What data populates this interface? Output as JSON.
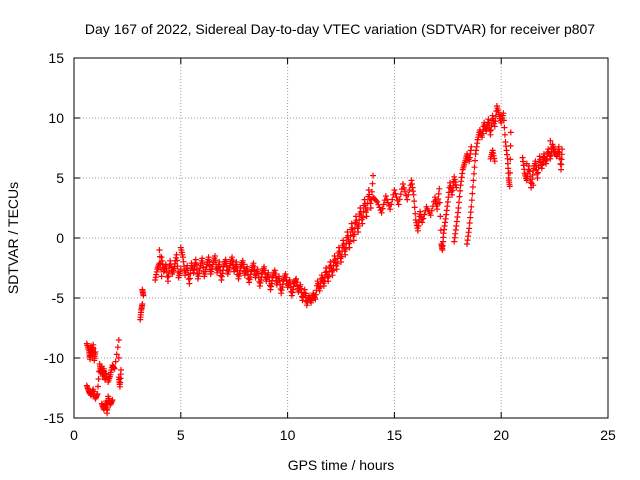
{
  "chart_data": {
    "type": "scatter",
    "title": "Day 167 of 2022, Sidereal Day-to-day VTEC variation (SDTVAR) for receiver p807",
    "xlabel": "GPS time / hours",
    "ylabel": "SDTVAR / TECUs",
    "xlim": [
      0,
      25
    ],
    "ylim": [
      -15,
      15
    ],
    "xticks": [
      0,
      5,
      10,
      15,
      20,
      25
    ],
    "yticks": [
      -15,
      -10,
      -5,
      0,
      5,
      10,
      15
    ],
    "xtick_labels": [
      "0",
      "5",
      "10",
      "15",
      "20",
      "25"
    ],
    "ytick_labels": [
      "-15",
      "-10",
      "-5",
      "0",
      "5",
      "10",
      "15"
    ],
    "grid": true,
    "marker": "+",
    "color": "#ff0000",
    "series": [
      {
        "name": "SDTVAR",
        "points": [
          [
            0.6,
            -8.8
          ],
          [
            0.7,
            -9.4
          ],
          [
            0.75,
            -10.1
          ],
          [
            0.8,
            -9.0
          ],
          [
            0.85,
            -9.8
          ],
          [
            0.9,
            -8.9
          ],
          [
            0.95,
            -10.2
          ],
          [
            1.0,
            -9.5
          ],
          [
            0.6,
            -12.3
          ],
          [
            0.7,
            -12.8
          ],
          [
            0.8,
            -13.1
          ],
          [
            0.9,
            -12.6
          ],
          [
            1.0,
            -13.4
          ],
          [
            1.1,
            -13.0
          ],
          [
            1.2,
            -10.5
          ],
          [
            1.25,
            -11.2
          ],
          [
            1.3,
            -10.7
          ],
          [
            1.35,
            -11.5
          ],
          [
            1.4,
            -10.9
          ],
          [
            1.45,
            -11.8
          ],
          [
            1.5,
            -11.3
          ],
          [
            1.3,
            -13.8
          ],
          [
            1.4,
            -14.3
          ],
          [
            1.5,
            -13.6
          ],
          [
            1.55,
            -14.6
          ],
          [
            1.6,
            -13.2
          ],
          [
            1.7,
            -13.9
          ],
          [
            1.8,
            -13.5
          ],
          [
            1.6,
            -12.0
          ],
          [
            1.7,
            -11.4
          ],
          [
            1.8,
            -10.6
          ],
          [
            1.9,
            -10.9
          ],
          [
            2.1,
            -8.5
          ],
          [
            2.1,
            -10.0
          ],
          [
            2.1,
            -11.6
          ],
          [
            2.15,
            -12.4
          ],
          [
            2.2,
            -11.0
          ],
          [
            3.1,
            -6.8
          ],
          [
            3.15,
            -6.0
          ],
          [
            3.2,
            -5.5
          ],
          [
            3.2,
            -4.3
          ],
          [
            3.25,
            -4.8
          ],
          [
            3.8,
            -3.5
          ],
          [
            3.9,
            -2.6
          ],
          [
            4.0,
            -2.1
          ],
          [
            4.0,
            -1.0
          ],
          [
            4.1,
            -3.2
          ],
          [
            4.1,
            -1.6
          ],
          [
            4.2,
            -2.8
          ],
          [
            4.3,
            -2.2
          ],
          [
            4.4,
            -3.6
          ],
          [
            4.5,
            -1.9
          ],
          [
            4.6,
            -3.0
          ],
          [
            4.7,
            -2.4
          ],
          [
            4.8,
            -1.4
          ],
          [
            4.9,
            -3.3
          ],
          [
            5.0,
            -2.6
          ],
          [
            5.0,
            -0.8
          ],
          [
            5.1,
            -1.6
          ],
          [
            5.2,
            -3.1
          ],
          [
            5.3,
            -2.3
          ],
          [
            5.4,
            -3.8
          ],
          [
            5.5,
            -2.1
          ],
          [
            5.6,
            -2.9
          ],
          [
            5.7,
            -1.8
          ],
          [
            5.8,
            -3.4
          ],
          [
            5.9,
            -2.5
          ],
          [
            6.0,
            -1.7
          ],
          [
            6.1,
            -3.2
          ],
          [
            6.2,
            -2.4
          ],
          [
            6.3,
            -1.6
          ],
          [
            6.4,
            -3.0
          ],
          [
            6.5,
            -2.2
          ],
          [
            6.6,
            -1.5
          ],
          [
            6.7,
            -2.9
          ],
          [
            6.8,
            -2.0
          ],
          [
            6.9,
            -3.5
          ],
          [
            7.0,
            -2.4
          ],
          [
            7.1,
            -1.8
          ],
          [
            7.2,
            -3.0
          ],
          [
            7.3,
            -2.3
          ],
          [
            7.4,
            -1.6
          ],
          [
            7.5,
            -2.8
          ],
          [
            7.6,
            -2.0
          ],
          [
            7.7,
            -3.4
          ],
          [
            7.8,
            -2.5
          ],
          [
            7.9,
            -1.9
          ],
          [
            8.0,
            -3.1
          ],
          [
            8.1,
            -2.4
          ],
          [
            8.2,
            -3.7
          ],
          [
            8.3,
            -2.8
          ],
          [
            8.4,
            -2.1
          ],
          [
            8.5,
            -3.3
          ],
          [
            8.6,
            -2.6
          ],
          [
            8.7,
            -4.0
          ],
          [
            8.8,
            -3.0
          ],
          [
            8.9,
            -2.4
          ],
          [
            9.0,
            -3.6
          ],
          [
            9.1,
            -2.9
          ],
          [
            9.2,
            -4.3
          ],
          [
            9.3,
            -3.3
          ],
          [
            9.4,
            -2.7
          ],
          [
            9.5,
            -3.9
          ],
          [
            9.6,
            -3.2
          ],
          [
            9.7,
            -4.6
          ],
          [
            9.8,
            -3.6
          ],
          [
            9.9,
            -3.0
          ],
          [
            10.0,
            -4.1
          ],
          [
            10.1,
            -3.5
          ],
          [
            10.2,
            -4.8
          ],
          [
            10.3,
            -3.8
          ],
          [
            10.4,
            -3.4
          ],
          [
            10.5,
            -4.5
          ],
          [
            10.6,
            -3.9
          ],
          [
            10.7,
            -5.2
          ],
          [
            10.8,
            -4.3
          ],
          [
            10.9,
            -5.6
          ],
          [
            11.0,
            -4.8
          ],
          [
            11.1,
            -5.4
          ],
          [
            11.2,
            -4.6
          ],
          [
            11.3,
            -5.1
          ],
          [
            11.4,
            -3.6
          ],
          [
            11.5,
            -4.4
          ],
          [
            11.6,
            -3.1
          ],
          [
            11.7,
            -4.0
          ],
          [
            11.8,
            -2.5
          ],
          [
            11.9,
            -3.6
          ],
          [
            12.0,
            -2.0
          ],
          [
            12.1,
            -3.1
          ],
          [
            12.2,
            -1.5
          ],
          [
            12.3,
            -2.6
          ],
          [
            12.4,
            -0.8
          ],
          [
            12.5,
            -2.0
          ],
          [
            12.6,
            -0.2
          ],
          [
            12.7,
            -1.4
          ],
          [
            12.8,
            0.5
          ],
          [
            12.9,
            -0.8
          ],
          [
            13.0,
            1.2
          ],
          [
            13.1,
            -0.2
          ],
          [
            13.2,
            1.8
          ],
          [
            13.3,
            0.5
          ],
          [
            13.4,
            2.5
          ],
          [
            13.5,
            1.2
          ],
          [
            13.6,
            3.2
          ],
          [
            13.7,
            1.8
          ],
          [
            13.8,
            4.0
          ],
          [
            13.9,
            2.5
          ],
          [
            14.0,
            5.2
          ],
          [
            14.0,
            3.4
          ],
          [
            14.2,
            3.0
          ],
          [
            14.4,
            2.1
          ],
          [
            14.6,
            3.5
          ],
          [
            14.8,
            2.4
          ],
          [
            15.0,
            4.0
          ],
          [
            15.2,
            2.8
          ],
          [
            15.4,
            4.5
          ],
          [
            15.6,
            3.2
          ],
          [
            15.8,
            4.8
          ],
          [
            15.9,
            3.6
          ],
          [
            16.0,
            1.5
          ],
          [
            16.1,
            0.6
          ],
          [
            16.2,
            2.2
          ],
          [
            16.3,
            1.3
          ],
          [
            16.5,
            2.6
          ],
          [
            16.7,
            1.9
          ],
          [
            16.9,
            3.4
          ],
          [
            17.0,
            2.4
          ],
          [
            17.1,
            4.1
          ],
          [
            17.2,
            -0.5
          ],
          [
            17.25,
            -1.0
          ],
          [
            17.3,
            0.4
          ],
          [
            17.4,
            1.6
          ],
          [
            17.5,
            3.0
          ],
          [
            17.6,
            4.6
          ],
          [
            17.7,
            3.6
          ],
          [
            17.8,
            5.1
          ],
          [
            17.9,
            4.2
          ],
          [
            17.8,
            -0.3
          ],
          [
            17.9,
            1.0
          ],
          [
            18.0,
            2.5
          ],
          [
            18.1,
            4.4
          ],
          [
            18.2,
            5.7
          ],
          [
            18.3,
            6.3
          ],
          [
            18.4,
            7.0
          ],
          [
            18.5,
            6.4
          ],
          [
            18.6,
            7.6
          ],
          [
            18.4,
            -0.5
          ],
          [
            18.5,
            0.8
          ],
          [
            18.6,
            2.6
          ],
          [
            18.7,
            4.8
          ],
          [
            18.8,
            7.0
          ],
          [
            18.9,
            8.2
          ],
          [
            19.0,
            9.0
          ],
          [
            19.1,
            8.4
          ],
          [
            19.2,
            9.6
          ],
          [
            19.3,
            8.9
          ],
          [
            19.4,
            9.9
          ],
          [
            19.5,
            8.6
          ],
          [
            19.6,
            10.2
          ],
          [
            19.7,
            9.3
          ],
          [
            19.8,
            11.0
          ],
          [
            19.9,
            10.3
          ],
          [
            20.0,
            9.6
          ],
          [
            20.1,
            10.4
          ],
          [
            20.2,
            8.0
          ],
          [
            20.3,
            6.6
          ],
          [
            20.35,
            5.0
          ],
          [
            20.4,
            4.3
          ],
          [
            20.45,
            8.8
          ],
          [
            19.5,
            6.6
          ],
          [
            19.6,
            7.3
          ],
          [
            19.7,
            6.4
          ],
          [
            21.0,
            6.7
          ],
          [
            21.1,
            5.4
          ],
          [
            21.2,
            4.8
          ],
          [
            21.3,
            6.0
          ],
          [
            21.4,
            4.2
          ],
          [
            21.5,
            5.6
          ],
          [
            21.6,
            6.4
          ],
          [
            21.7,
            5.0
          ],
          [
            21.8,
            6.8
          ],
          [
            21.9,
            5.8
          ],
          [
            22.0,
            7.0
          ],
          [
            22.1,
            6.2
          ],
          [
            22.2,
            7.4
          ],
          [
            22.3,
            6.6
          ],
          [
            22.4,
            7.8
          ],
          [
            22.5,
            7.2
          ],
          [
            22.6,
            6.8
          ],
          [
            22.7,
            7.6
          ],
          [
            22.8,
            5.7
          ],
          [
            22.85,
            7.4
          ],
          [
            22.3,
            8.1
          ],
          [
            22.0,
            6.4
          ],
          [
            21.2,
            6.2
          ],
          [
            21.5,
            4.4
          ]
        ]
      }
    ]
  }
}
